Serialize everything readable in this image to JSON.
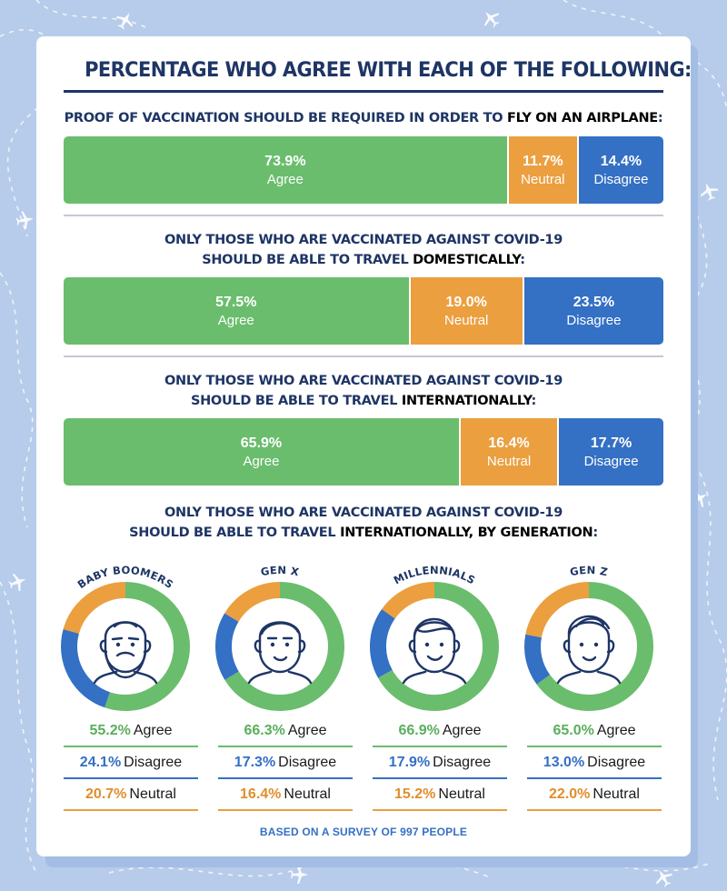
{
  "title": "PERCENTAGE WHO AGREE WITH EACH OF THE FOLLOWING:",
  "footer": "BASED ON A SURVEY OF 997 PEOPLE",
  "colors": {
    "agree": "#6abd6d",
    "neutral": "#eb9f3f",
    "disagree": "#3470c4",
    "navy": "#1e3565"
  },
  "labels": {
    "agree": "Agree",
    "neutral": "Neutral",
    "disagree": "Disagree"
  },
  "questions": [
    {
      "line1_a": "PROOF OF VACCINATION SHOULD BE REQUIRED IN ORDER TO ",
      "line1_b": "FLY ON AN AIRPLANE",
      "line1_c": ":"
    },
    {
      "line1": "ONLY THOSE WHO ARE VACCINATED AGAINST COVID-19",
      "line2_a": "SHOULD BE ABLE TO TRAVEL ",
      "line2_b": "DOMESTICALLY",
      "line2_c": ":"
    },
    {
      "line1": "ONLY THOSE WHO ARE VACCINATED AGAINST COVID-19",
      "line2_a": "SHOULD BE ABLE TO TRAVEL ",
      "line2_b": "INTERNATIONALLY",
      "line2_c": ":"
    },
    {
      "line1": "ONLY THOSE WHO ARE VACCINATED AGAINST COVID-19",
      "line2_a": "SHOULD BE ABLE TO TRAVEL ",
      "line2_b": "INTERNATIONALLY, BY GENERATION",
      "line2_c": ":"
    }
  ],
  "chart_data": [
    {
      "type": "bar",
      "stacked": true,
      "orientation": "horizontal",
      "title": "PROOF OF VACCINATION SHOULD BE REQUIRED IN ORDER TO FLY ON AN AIRPLANE:",
      "segments": [
        {
          "name": "Agree",
          "value": 73.9,
          "display": "73.9%"
        },
        {
          "name": "Neutral",
          "value": 11.7,
          "display": "11.7%"
        },
        {
          "name": "Disagree",
          "value": 14.4,
          "display": "14.4%"
        }
      ]
    },
    {
      "type": "bar",
      "stacked": true,
      "orientation": "horizontal",
      "title": "ONLY THOSE WHO ARE VACCINATED AGAINST COVID-19 SHOULD BE ABLE TO TRAVEL DOMESTICALLY:",
      "segments": [
        {
          "name": "Agree",
          "value": 57.5,
          "display": "57.5%"
        },
        {
          "name": "Neutral",
          "value": 19.0,
          "display": "19.0%"
        },
        {
          "name": "Disagree",
          "value": 23.5,
          "display": "23.5%"
        }
      ]
    },
    {
      "type": "bar",
      "stacked": true,
      "orientation": "horizontal",
      "title": "ONLY THOSE WHO ARE VACCINATED AGAINST COVID-19 SHOULD BE ABLE TO TRAVEL INTERNATIONALLY:",
      "segments": [
        {
          "name": "Agree",
          "value": 65.9,
          "display": "65.9%"
        },
        {
          "name": "Neutral",
          "value": 16.4,
          "display": "16.4%"
        },
        {
          "name": "Disagree",
          "value": 17.7,
          "display": "17.7%"
        }
      ]
    },
    {
      "type": "pie",
      "donut": true,
      "title": "ONLY THOSE WHO ARE VACCINATED AGAINST COVID-19 SHOULD BE ABLE TO TRAVEL INTERNATIONALLY, BY GENERATION:",
      "groups": [
        {
          "name": "BABY BOOMERS",
          "face": "boomer",
          "agree": 55.2,
          "disagree": 24.1,
          "neutral": 20.7,
          "agree_display": "55.2%",
          "disagree_display": "24.1%",
          "neutral_display": "20.7%"
        },
        {
          "name": "GEN X",
          "face": "genx",
          "agree": 66.3,
          "disagree": 17.3,
          "neutral": 16.4,
          "agree_display": "66.3%",
          "disagree_display": "17.3%",
          "neutral_display": "16.4%"
        },
        {
          "name": "MILLENNIALS",
          "face": "millennial",
          "agree": 66.9,
          "disagree": 17.9,
          "neutral": 15.2,
          "agree_display": "66.9%",
          "disagree_display": "17.9%",
          "neutral_display": "15.2%"
        },
        {
          "name": "GEN Z",
          "face": "genz",
          "agree": 65.0,
          "disagree": 13.0,
          "neutral": 22.0,
          "agree_display": "65.0%",
          "disagree_display": "13.0%",
          "neutral_display": "22.0%"
        }
      ]
    }
  ]
}
